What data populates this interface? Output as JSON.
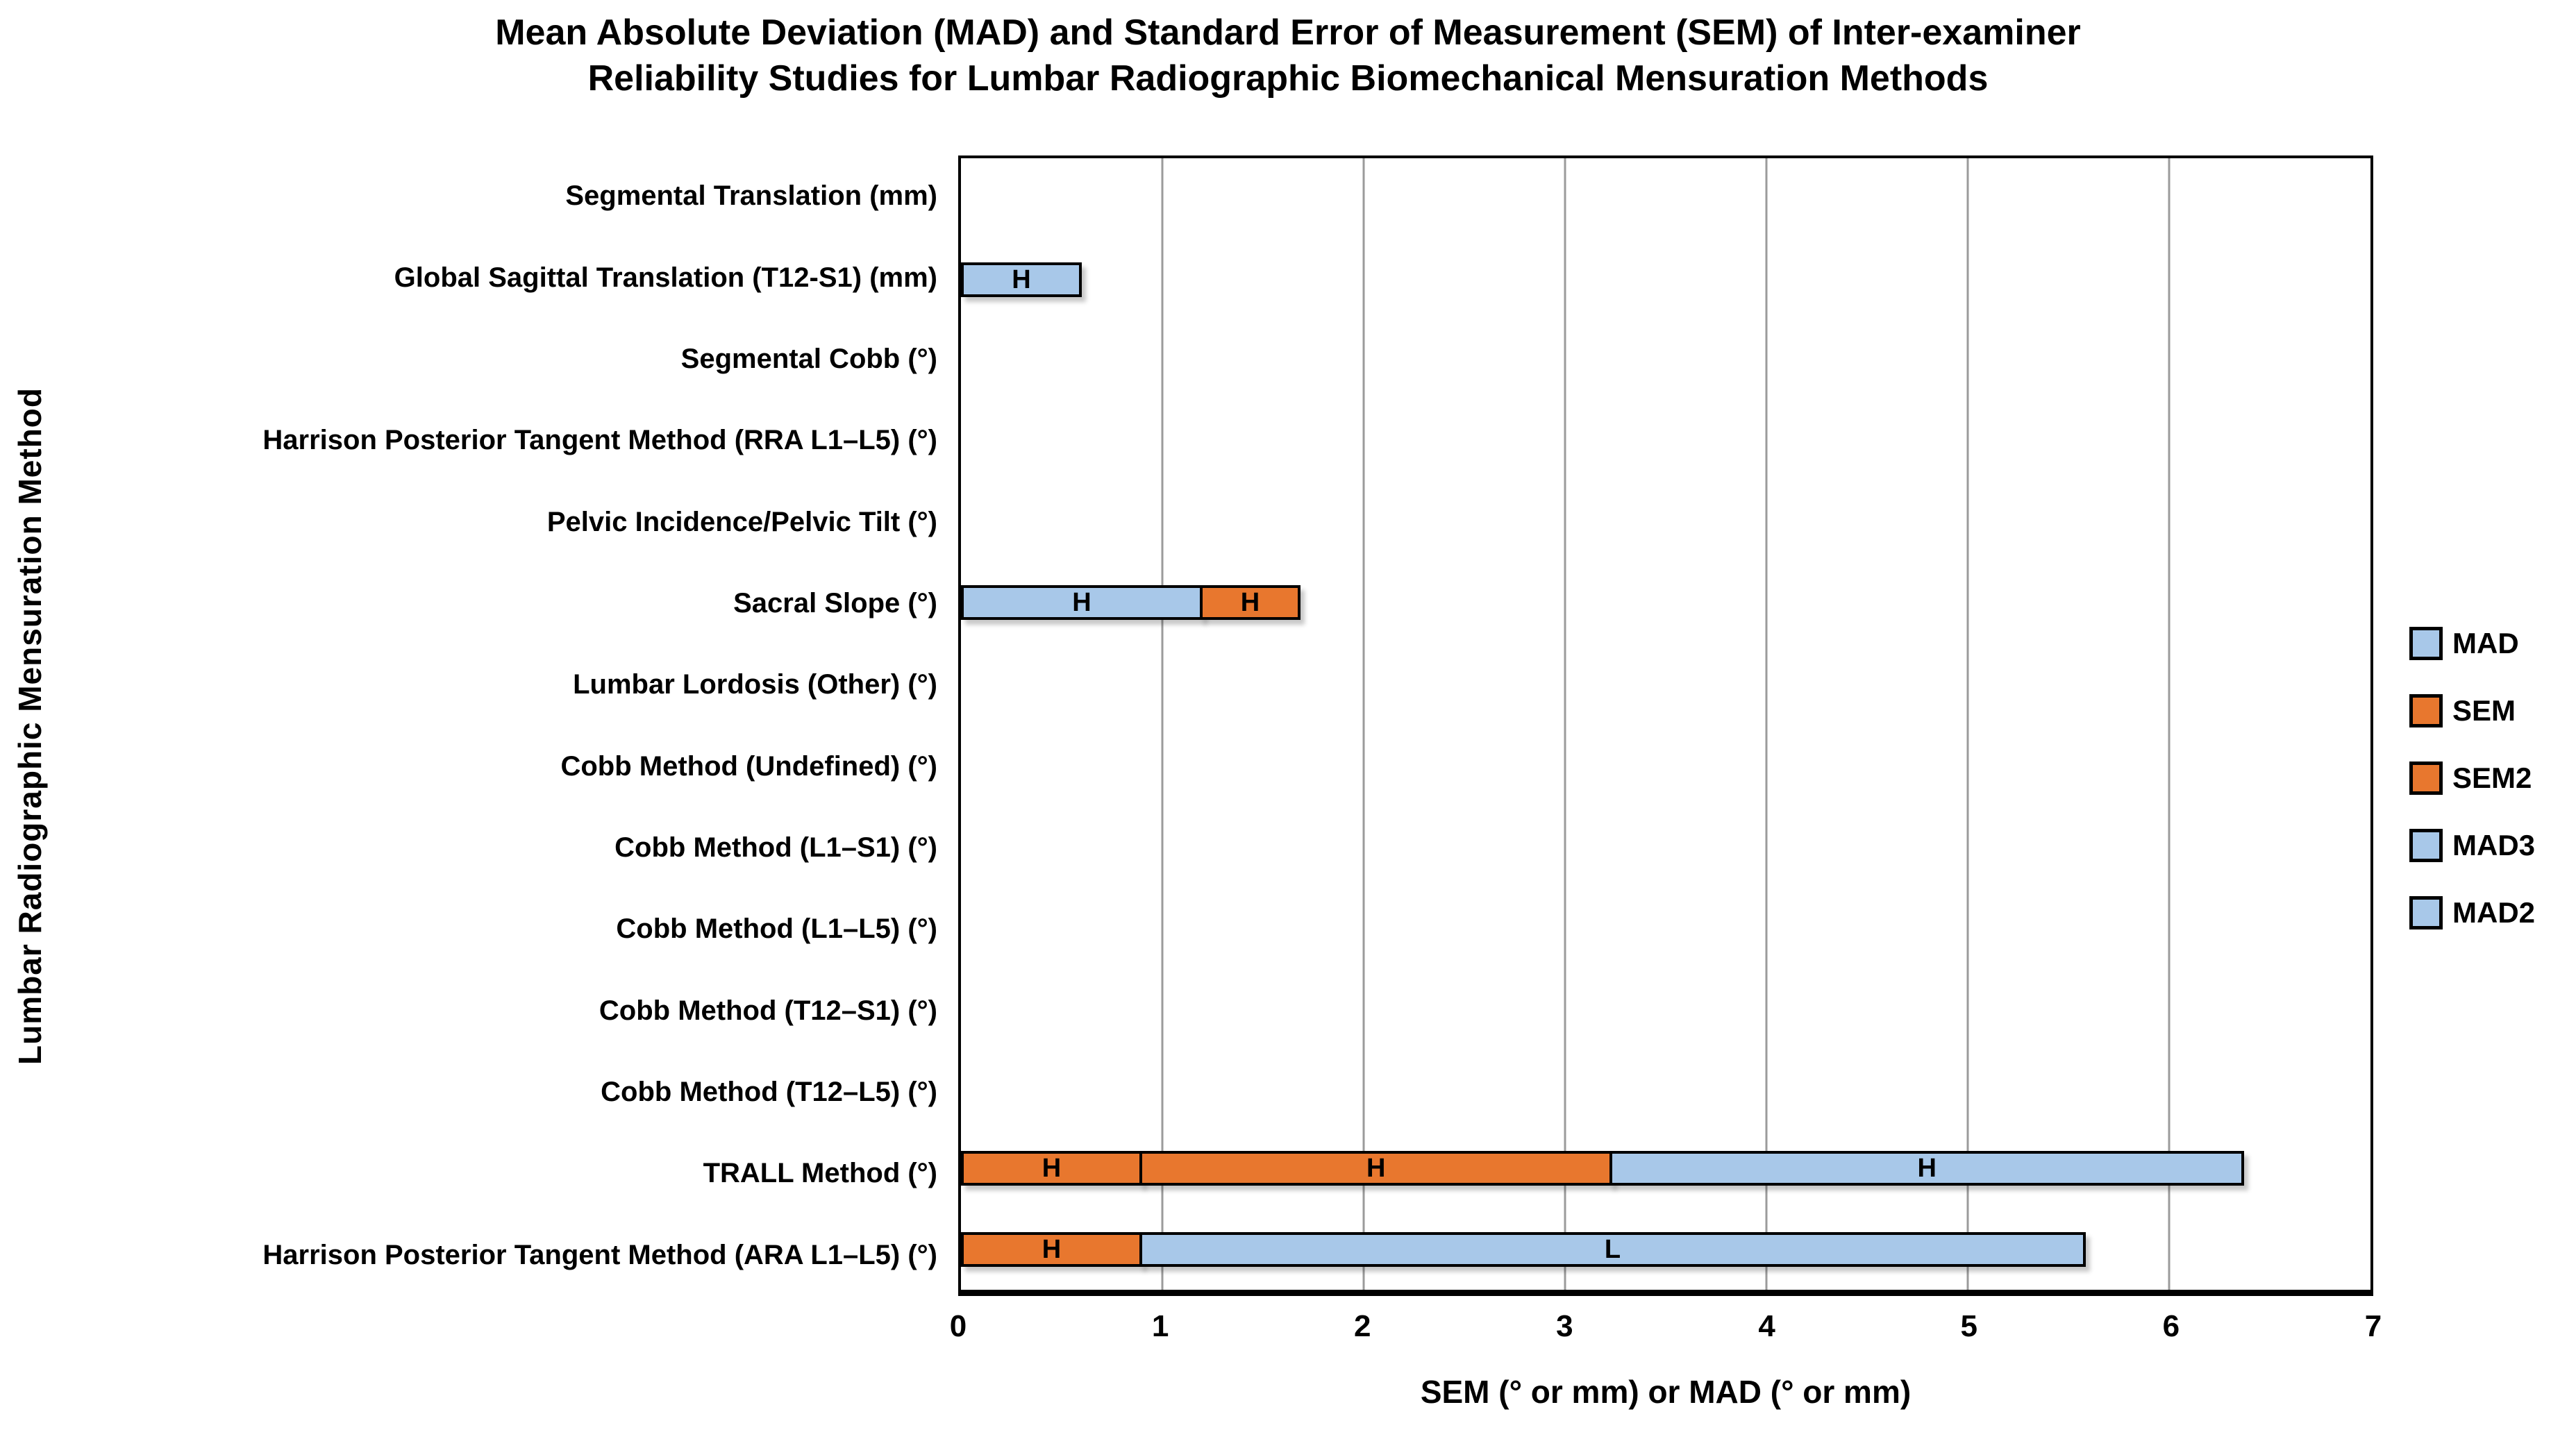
{
  "title": {
    "lines": [
      "Mean Absolute Deviation (MAD) and Standard Error of Measurement (SEM) of Inter-examiner",
      "Reliability Studies for Lumbar Radiographic Biomechanical Mensuration Methods"
    ]
  },
  "axes": {
    "x": {
      "label": "SEM (° or mm) or MAD (° or mm)",
      "min": 0,
      "max": 7,
      "ticks": [
        "0",
        "1",
        "2",
        "3",
        "4",
        "5",
        "6",
        "7"
      ],
      "grid": true
    },
    "y": {
      "label": "Lumbar Radiographic Mensuration Method"
    }
  },
  "legend": {
    "position": "right",
    "entries": [
      {
        "name": "MAD",
        "color": "#A8C8E9"
      },
      {
        "name": "SEM",
        "color": "#E8772E"
      },
      {
        "name": "SEM2",
        "color": "#E8772E"
      },
      {
        "name": "MAD3",
        "color": "#A8C8E9"
      },
      {
        "name": "MAD2",
        "color": "#A8C8E9"
      }
    ]
  },
  "colors": {
    "bar_blue": "#A8C8E9",
    "bar_orange": "#E8772E",
    "bar_border": "#000000",
    "gridline": "#9B9B9B",
    "plot_border": "#000000",
    "background": "#FFFFFF",
    "text": "#000000"
  },
  "chart_data": {
    "type": "bar",
    "orientation": "horizontal",
    "stacked": true,
    "xlim": [
      0,
      7
    ],
    "grid": "vertical",
    "legend_position": "right",
    "title": "Mean Absolute Deviation (MAD) and Standard Error of Measurement (SEM) of Inter-examiner Reliability Studies for Lumbar Radiographic Biomechanical Mensuration Methods",
    "xlabel": "SEM (° or mm) or MAD (° or mm)",
    "ylabel": "Lumbar Radiographic Mensuration Method",
    "categories": [
      "Segmental Translation (mm)",
      "Global Sagittal Translation (T12-S1) (mm)",
      "Segmental Cobb (°)",
      "Harrison Posterior Tangent Method (RRA L1–L5) (°)",
      "Pelvic Incidence/Pelvic Tilt (°)",
      "Sacral Slope (°)",
      "Lumbar Lordosis (Other) (°)",
      "Cobb Method (Undefined) (°)",
      "Cobb Method (L1–S1) (°)",
      "Cobb Method (L1–L5) (°)",
      "Cobb Method (T12–S1) (°)",
      "Cobb Method (T12–L5) (°)",
      "TRALL Method (°)",
      "Harrison Posterior Tangent Method (ARA L1–L5) (°)"
    ],
    "series": [
      {
        "name": "MAD",
        "color": "#A8C8E9",
        "values": [
          0,
          0.6,
          0,
          0,
          0,
          1.2,
          0,
          0,
          0,
          0,
          0,
          0,
          0,
          0
        ],
        "segment_labels": [
          "",
          "H",
          "",
          "",
          "",
          "H",
          "",
          "",
          "",
          "",
          "",
          "",
          "",
          ""
        ]
      },
      {
        "name": "SEM",
        "color": "#E8772E",
        "values": [
          0,
          0,
          0,
          0,
          0,
          0.5,
          0,
          0,
          0,
          0,
          0,
          0,
          0.9,
          0.9
        ],
        "segment_labels": [
          "",
          "",
          "",
          "",
          "",
          "H",
          "",
          "",
          "",
          "",
          "",
          "",
          "H",
          "H"
        ]
      },
      {
        "name": "SEM2",
        "color": "#E8772E",
        "values": [
          0,
          0,
          0,
          0,
          0,
          0,
          0,
          0,
          0,
          0,
          0,
          0,
          2.35,
          0
        ],
        "segment_labels": [
          "",
          "",
          "",
          "",
          "",
          "",
          "",
          "",
          "",
          "",
          "",
          "",
          "H",
          ""
        ]
      },
      {
        "name": "MAD3",
        "color": "#A8C8E9",
        "values": [
          0,
          0,
          0,
          0,
          0,
          0,
          0,
          0,
          0,
          0,
          0,
          0,
          3.15,
          0
        ],
        "segment_labels": [
          "",
          "",
          "",
          "",
          "",
          "",
          "",
          "",
          "",
          "",
          "",
          "",
          "H",
          ""
        ]
      },
      {
        "name": "MAD2",
        "color": "#A8C8E9",
        "values": [
          0,
          0,
          0,
          0,
          0,
          0,
          0,
          0,
          0,
          0,
          0,
          0,
          0,
          4.7
        ],
        "segment_labels": [
          "",
          "",
          "",
          "",
          "",
          "",
          "",
          "",
          "",
          "",
          "",
          "",
          "",
          "L"
        ]
      }
    ]
  }
}
